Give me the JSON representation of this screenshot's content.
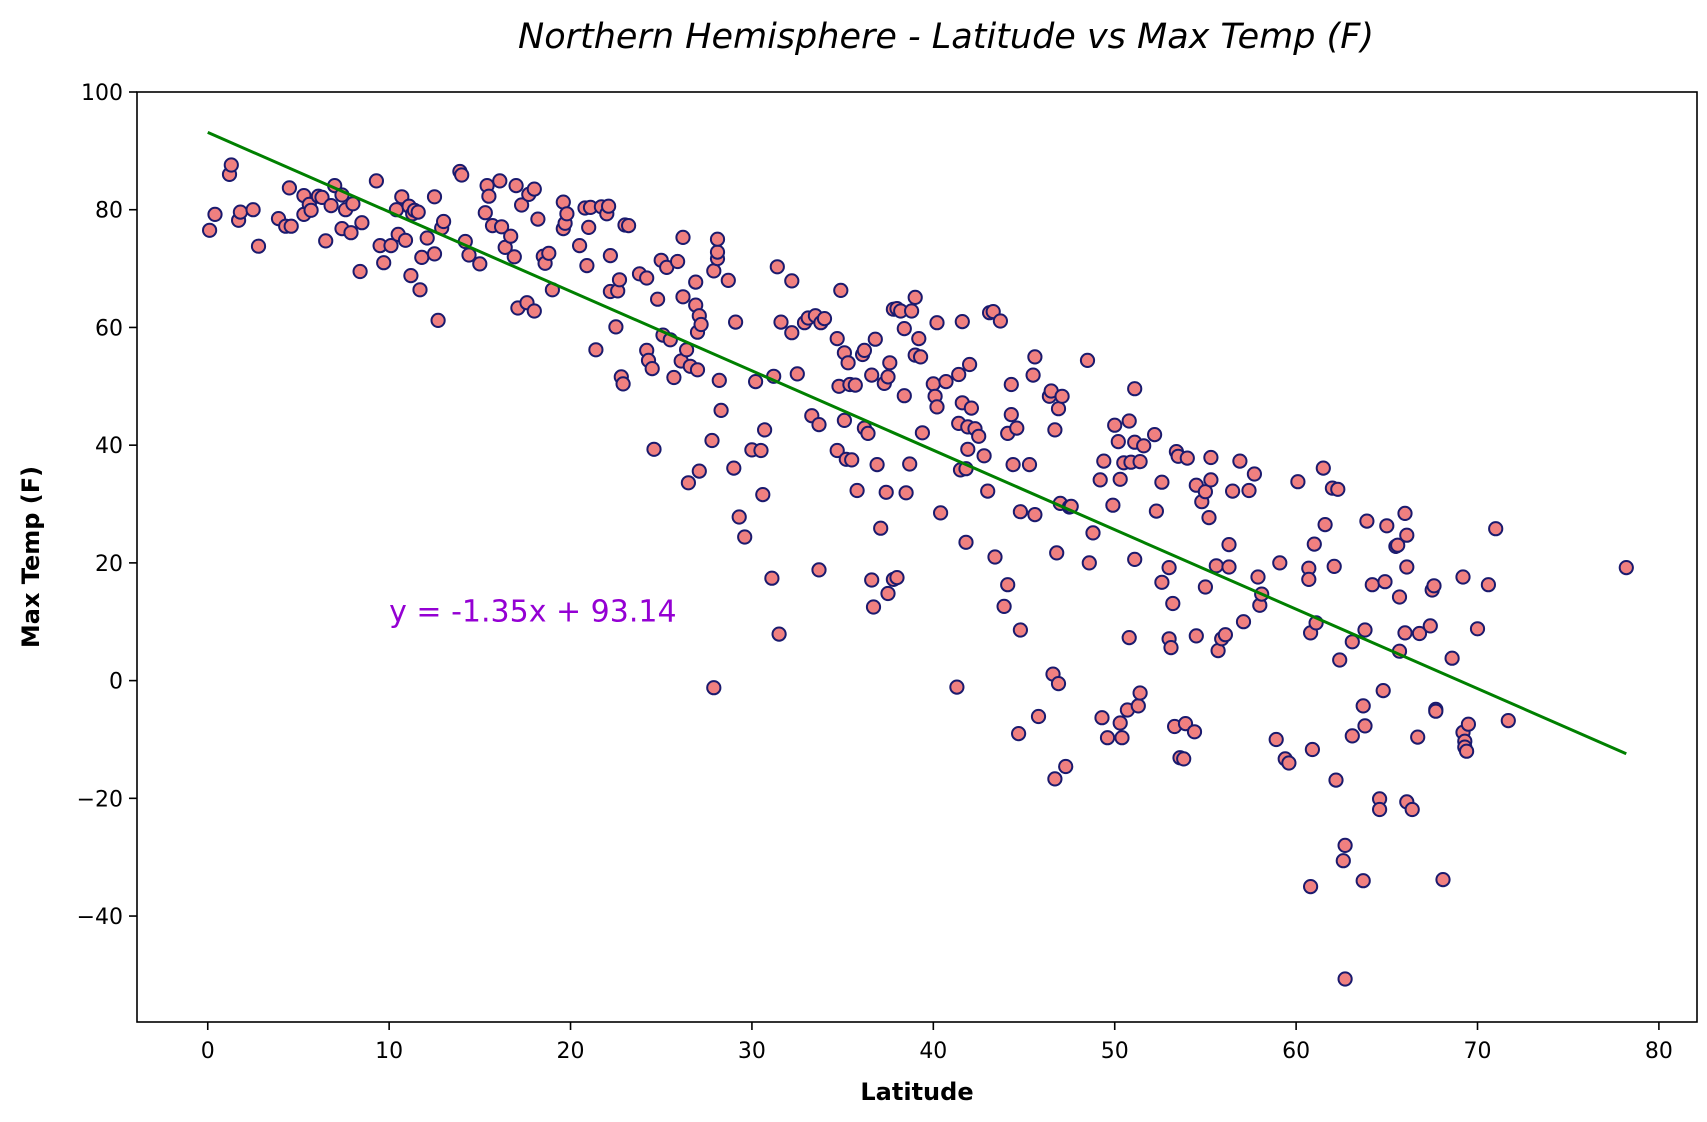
{
  "chart_data": {
    "type": "scatter",
    "title": "Northern Hemisphere - Latitude vs Max Temp (F)",
    "xlabel": "Latitude",
    "ylabel": "Max Temp (F)",
    "xlim": [
      -3.9,
      82.1
    ],
    "ylim": [
      -58,
      100
    ],
    "xticks": [
      0,
      10,
      20,
      30,
      40,
      50,
      60,
      70,
      80
    ],
    "yticks": [
      -40,
      -20,
      0,
      20,
      40,
      60,
      80,
      100
    ],
    "xtick_labels": [
      "0",
      "10",
      "20",
      "30",
      "40",
      "50",
      "60",
      "70",
      "80"
    ],
    "ytick_labels": [
      "−40",
      "−20",
      "0",
      "20",
      "40",
      "60",
      "80",
      "100"
    ],
    "grid": false,
    "marker_face_color": "#f08080",
    "marker_edge_color": "#1a1a6e",
    "regression": {
      "slope": -1.35,
      "intercept": 93.14,
      "x_range": [
        0,
        78.2
      ],
      "color": "#008000",
      "equation": "y = -1.35x + 93.14",
      "equation_color": "#9400d3",
      "equation_at": [
        10,
        10
      ]
    },
    "points": [
      [
        0.1,
        76.5
      ],
      [
        0.4,
        79.2
      ],
      [
        1.2,
        86
      ],
      [
        1.3,
        87.6
      ],
      [
        1.7,
        78.2
      ],
      [
        1.8,
        79.6
      ],
      [
        2.5,
        80
      ],
      [
        2.8,
        73.8
      ],
      [
        3.9,
        78.5
      ],
      [
        4.3,
        77.2
      ],
      [
        4.6,
        77.2
      ],
      [
        4.5,
        83.7
      ],
      [
        5.3,
        82.4
      ],
      [
        5.3,
        79.2
      ],
      [
        5.6,
        80.9
      ],
      [
        5.7,
        79.9
      ],
      [
        6.1,
        82.3
      ],
      [
        6.3,
        82.1
      ],
      [
        6.5,
        74.7
      ],
      [
        6.8,
        80.7
      ],
      [
        7,
        84.1
      ],
      [
        7.4,
        82.5
      ],
      [
        7.4,
        76.8
      ],
      [
        7.6,
        80
      ],
      [
        7.9,
        76.1
      ],
      [
        8,
        81
      ],
      [
        8.4,
        69.5
      ],
      [
        8.5,
        77.8
      ],
      [
        9.3,
        84.9
      ],
      [
        9.5,
        73.9
      ],
      [
        9.7,
        71
      ],
      [
        10.1,
        73.9
      ],
      [
        10.4,
        80
      ],
      [
        10.5,
        75.8
      ],
      [
        10.7,
        82.2
      ],
      [
        10.9,
        74.8
      ],
      [
        11.1,
        80.6
      ],
      [
        11.3,
        79.3
      ],
      [
        11.2,
        68.8
      ],
      [
        11.4,
        79.9
      ],
      [
        11.6,
        79.6
      ],
      [
        11.7,
        66.4
      ],
      [
        11.8,
        71.9
      ],
      [
        12.1,
        75.2
      ],
      [
        12.5,
        82.2
      ],
      [
        12.5,
        72.5
      ],
      [
        12.7,
        61.2
      ],
      [
        12.9,
        76.9
      ],
      [
        13,
        78
      ],
      [
        13.9,
        86.5
      ],
      [
        14,
        85.9
      ],
      [
        14.2,
        74.6
      ],
      [
        14.4,
        72.3
      ],
      [
        15,
        70.8
      ],
      [
        15.3,
        79.5
      ],
      [
        15.4,
        84.1
      ],
      [
        15.5,
        82.3
      ],
      [
        15.7,
        77.3
      ],
      [
        16.1,
        84.9
      ],
      [
        16.2,
        77.1
      ],
      [
        16.4,
        73.6
      ],
      [
        16.7,
        75.5
      ],
      [
        16.9,
        72
      ],
      [
        17,
        84.1
      ],
      [
        17.1,
        63.3
      ],
      [
        17.3,
        80.8
      ],
      [
        17.6,
        64.2
      ],
      [
        17.7,
        82.6
      ],
      [
        18,
        83.5
      ],
      [
        18,
        62.8
      ],
      [
        18.2,
        78.4
      ],
      [
        18.5,
        72.1
      ],
      [
        18.6,
        70.9
      ],
      [
        18.8,
        72.6
      ],
      [
        19,
        66.4
      ],
      [
        19.6,
        81.3
      ],
      [
        19.6,
        76.8
      ],
      [
        19.7,
        77.7
      ],
      [
        19.8,
        79.3
      ],
      [
        20.5,
        73.9
      ],
      [
        20.8,
        80.3
      ],
      [
        20.9,
        70.5
      ],
      [
        21,
        77
      ],
      [
        21.1,
        80.4
      ],
      [
        21.4,
        56.2
      ],
      [
        21.7,
        80.5
      ],
      [
        22,
        79.3
      ],
      [
        22.1,
        80.6
      ],
      [
        22.2,
        72.2
      ],
      [
        22.2,
        66.1
      ],
      [
        22.5,
        60.1
      ],
      [
        22.6,
        66.2
      ],
      [
        22.7,
        68.1
      ],
      [
        22.8,
        51.6
      ],
      [
        22.9,
        50.4
      ],
      [
        23,
        77.4
      ],
      [
        23.2,
        77.3
      ],
      [
        23.8,
        69.1
      ],
      [
        24.2,
        56.1
      ],
      [
        24.2,
        68.4
      ],
      [
        24.3,
        54.4
      ],
      [
        24.5,
        53
      ],
      [
        24.6,
        39.3
      ],
      [
        24.8,
        64.8
      ],
      [
        25,
        71.4
      ],
      [
        25.1,
        58.7
      ],
      [
        25.3,
        70.2
      ],
      [
        25.5,
        57.9
      ],
      [
        25.7,
        51.5
      ],
      [
        25.9,
        71.2
      ],
      [
        26.1,
        54.3
      ],
      [
        26.2,
        75.3
      ],
      [
        26.2,
        65.2
      ],
      [
        26.4,
        56.2
      ],
      [
        26.5,
        33.6
      ],
      [
        26.6,
        53.4
      ],
      [
        26.9,
        67.7
      ],
      [
        26.9,
        63.8
      ],
      [
        27,
        59.2
      ],
      [
        27,
        52.8
      ],
      [
        27.1,
        35.6
      ],
      [
        27.1,
        62
      ],
      [
        27.2,
        60.5
      ],
      [
        27.8,
        40.8
      ],
      [
        27.9,
        -1.2
      ],
      [
        27.9,
        69.6
      ],
      [
        28.1,
        71.7
      ],
      [
        28.1,
        72.8
      ],
      [
        28.1,
        75
      ],
      [
        28.2,
        51
      ],
      [
        28.3,
        45.9
      ],
      [
        28.7,
        68
      ],
      [
        29,
        36.1
      ],
      [
        29.1,
        60.9
      ],
      [
        29.3,
        27.8
      ],
      [
        29.6,
        24.4
      ],
      [
        30,
        39.2
      ],
      [
        30.2,
        50.8
      ],
      [
        30.5,
        39.1
      ],
      [
        30.6,
        31.6
      ],
      [
        30.7,
        42.6
      ],
      [
        31.1,
        17.4
      ],
      [
        31.2,
        51.7
      ],
      [
        31.4,
        70.3
      ],
      [
        31.5,
        7.9
      ],
      [
        31.6,
        60.9
      ],
      [
        32.2,
        59.1
      ],
      [
        32.2,
        67.9
      ],
      [
        32.5,
        52.1
      ],
      [
        32.9,
        60.8
      ],
      [
        33.1,
        61.6
      ],
      [
        33.3,
        45
      ],
      [
        33.5,
        62
      ],
      [
        33.7,
        18.8
      ],
      [
        33.7,
        43.5
      ],
      [
        33.8,
        60.8
      ],
      [
        34,
        61.5
      ],
      [
        34.7,
        39.1
      ],
      [
        34.7,
        58.1
      ],
      [
        34.8,
        50
      ],
      [
        34.9,
        66.3
      ],
      [
        35.1,
        44.2
      ],
      [
        35.1,
        55.7
      ],
      [
        35.2,
        37.6
      ],
      [
        35.3,
        54
      ],
      [
        35.4,
        50.3
      ],
      [
        35.5,
        37.5
      ],
      [
        35.7,
        50.2
      ],
      [
        35.8,
        32.3
      ],
      [
        36.1,
        55.4
      ],
      [
        36.2,
        42.9
      ],
      [
        36.2,
        56.1
      ],
      [
        36.4,
        42
      ],
      [
        36.6,
        51.9
      ],
      [
        36.6,
        17.1
      ],
      [
        36.7,
        12.5
      ],
      [
        36.8,
        58
      ],
      [
        36.9,
        36.7
      ],
      [
        37.1,
        25.9
      ],
      [
        37.3,
        50.5
      ],
      [
        37.4,
        32
      ],
      [
        37.5,
        14.8
      ],
      [
        37.5,
        51.6
      ],
      [
        37.6,
        54
      ],
      [
        37.8,
        17.2
      ],
      [
        37.8,
        63.1
      ],
      [
        38,
        17.5
      ],
      [
        38,
        63.2
      ],
      [
        38.2,
        62.8
      ],
      [
        38.4,
        59.8
      ],
      [
        38.4,
        48.4
      ],
      [
        38.5,
        31.9
      ],
      [
        38.7,
        36.8
      ],
      [
        38.8,
        62.8
      ],
      [
        39,
        55.3
      ],
      [
        39,
        65.1
      ],
      [
        39.2,
        58.1
      ],
      [
        39.3,
        55
      ],
      [
        39.4,
        42.1
      ],
      [
        40,
        50.4
      ],
      [
        40.1,
        48.3
      ],
      [
        40.2,
        46.5
      ],
      [
        40.2,
        60.8
      ],
      [
        40.4,
        28.5
      ],
      [
        40.7,
        50.8
      ],
      [
        41.3,
        -1.1
      ],
      [
        41.4,
        52
      ],
      [
        41.4,
        43.7
      ],
      [
        41.5,
        35.8
      ],
      [
        41.6,
        47.2
      ],
      [
        41.6,
        61
      ],
      [
        41.8,
        36
      ],
      [
        41.8,
        23.5
      ],
      [
        41.9,
        43.1
      ],
      [
        41.9,
        39.3
      ],
      [
        42,
        53.7
      ],
      [
        42.1,
        46.3
      ],
      [
        42.3,
        42.8
      ],
      [
        42.5,
        41.5
      ],
      [
        42.8,
        38.2
      ],
      [
        43,
        32.2
      ],
      [
        43.1,
        62.5
      ],
      [
        43.3,
        62.7
      ],
      [
        43.4,
        21
      ],
      [
        43.7,
        61.1
      ],
      [
        43.9,
        12.6
      ],
      [
        44.1,
        16.3
      ],
      [
        44.1,
        42
      ],
      [
        44.3,
        45.2
      ],
      [
        44.3,
        50.3
      ],
      [
        44.4,
        36.7
      ],
      [
        44.6,
        42.9
      ],
      [
        44.7,
        -9
      ],
      [
        44.8,
        28.7
      ],
      [
        44.8,
        8.6
      ],
      [
        45.3,
        36.7
      ],
      [
        45.5,
        51.9
      ],
      [
        45.6,
        55
      ],
      [
        45.6,
        28.2
      ],
      [
        45.8,
        -6.1
      ],
      [
        46.4,
        48.3
      ],
      [
        46.5,
        49.2
      ],
      [
        46.6,
        1.1
      ],
      [
        46.7,
        -16.7
      ],
      [
        46.7,
        42.6
      ],
      [
        46.8,
        21.7
      ],
      [
        46.9,
        -0.5
      ],
      [
        46.9,
        46.2
      ],
      [
        47,
        30.1
      ],
      [
        47.1,
        48.3
      ],
      [
        47.3,
        -14.6
      ],
      [
        47.5,
        29.5
      ],
      [
        47.6,
        29.6
      ],
      [
        48.5,
        54.4
      ],
      [
        48.6,
        20
      ],
      [
        48.8,
        25.1
      ],
      [
        49.2,
        34.1
      ],
      [
        49.3,
        -6.3
      ],
      [
        49.4,
        37.3
      ],
      [
        49.6,
        -9.7
      ],
      [
        49.9,
        29.8
      ],
      [
        50,
        43.4
      ],
      [
        50.2,
        40.6
      ],
      [
        50.3,
        -7.2
      ],
      [
        50.3,
        34.2
      ],
      [
        50.4,
        -9.7
      ],
      [
        50.5,
        37
      ],
      [
        50.7,
        -5
      ],
      [
        50.8,
        7.3
      ],
      [
        50.8,
        44.1
      ],
      [
        50.9,
        37.1
      ],
      [
        51.1,
        40.5
      ],
      [
        51.1,
        49.6
      ],
      [
        51.1,
        20.6
      ],
      [
        51.3,
        -4.3
      ],
      [
        51.4,
        -2.1
      ],
      [
        51.4,
        37.2
      ],
      [
        51.6,
        39.9
      ],
      [
        52.2,
        41.8
      ],
      [
        52.3,
        28.8
      ],
      [
        52.6,
        33.7
      ],
      [
        52.6,
        16.7
      ],
      [
        53,
        19.2
      ],
      [
        53,
        7.1
      ],
      [
        53.1,
        5.6
      ],
      [
        53.2,
        13.1
      ],
      [
        53.3,
        -7.8
      ],
      [
        53.4,
        38.9
      ],
      [
        53.5,
        38.1
      ],
      [
        53.6,
        -13.1
      ],
      [
        53.8,
        -13.3
      ],
      [
        53.9,
        -7.3
      ],
      [
        54,
        37.8
      ],
      [
        54.4,
        -8.7
      ],
      [
        54.5,
        7.6
      ],
      [
        54.5,
        33.2
      ],
      [
        54.8,
        30.4
      ],
      [
        55,
        15.9
      ],
      [
        55,
        32.1
      ],
      [
        55.2,
        27.7
      ],
      [
        55.3,
        34.1
      ],
      [
        55.3,
        37.9
      ],
      [
        55.6,
        19.5
      ],
      [
        55.7,
        5.1
      ],
      [
        55.9,
        7.1
      ],
      [
        56.1,
        7.8
      ],
      [
        56.3,
        19.3
      ],
      [
        56.3,
        23.1
      ],
      [
        56.5,
        32.2
      ],
      [
        56.9,
        37.3
      ],
      [
        57.1,
        10
      ],
      [
        57.4,
        32.3
      ],
      [
        57.7,
        35.1
      ],
      [
        57.9,
        17.6
      ],
      [
        58,
        12.8
      ],
      [
        58.1,
        14.7
      ],
      [
        58.9,
        -10
      ],
      [
        59.1,
        20
      ],
      [
        59.4,
        -13.3
      ],
      [
        59.6,
        -14
      ],
      [
        60.1,
        33.8
      ],
      [
        60.7,
        19.1
      ],
      [
        60.7,
        17.2
      ],
      [
        60.8,
        8.1
      ],
      [
        60.8,
        -35
      ],
      [
        60.9,
        -11.7
      ],
      [
        61,
        23.2
      ],
      [
        61.1,
        9.8
      ],
      [
        61.5,
        36.1
      ],
      [
        61.6,
        26.5
      ],
      [
        62,
        32.7
      ],
      [
        62.1,
        19.4
      ],
      [
        62.2,
        -16.9
      ],
      [
        62.3,
        32.5
      ],
      [
        62.4,
        3.5
      ],
      [
        62.6,
        -30.6
      ],
      [
        62.7,
        -50.7
      ],
      [
        62.7,
        -28
      ],
      [
        63.1,
        6.6
      ],
      [
        63.1,
        -9.4
      ],
      [
        63.7,
        -4.3
      ],
      [
        63.7,
        -34
      ],
      [
        63.8,
        8.6
      ],
      [
        63.8,
        -7.7
      ],
      [
        63.9,
        27.1
      ],
      [
        64.2,
        16.3
      ],
      [
        64.6,
        -20.1
      ],
      [
        64.6,
        -21.9
      ],
      [
        64.8,
        -1.7
      ],
      [
        64.9,
        16.8
      ],
      [
        65,
        26.3
      ],
      [
        65.5,
        22.8
      ],
      [
        65.6,
        23
      ],
      [
        65.7,
        14.2
      ],
      [
        65.7,
        5
      ],
      [
        66,
        8.1
      ],
      [
        66,
        28.4
      ],
      [
        66.1,
        24.7
      ],
      [
        66.1,
        19.3
      ],
      [
        66.1,
        -20.6
      ],
      [
        66.4,
        -21.9
      ],
      [
        66.7,
        -9.6
      ],
      [
        66.8,
        8
      ],
      [
        67.4,
        9.3
      ],
      [
        67.5,
        15.4
      ],
      [
        67.6,
        16.1
      ],
      [
        67.7,
        -4.9
      ],
      [
        67.7,
        -5.2
      ],
      [
        68.1,
        -33.8
      ],
      [
        68.6,
        3.8
      ],
      [
        69.2,
        17.6
      ],
      [
        69.2,
        -8.8
      ],
      [
        69.3,
        -10.3
      ],
      [
        69.3,
        -11.3
      ],
      [
        69.4,
        -12
      ],
      [
        69.5,
        -7.4
      ],
      [
        70,
        8.8
      ],
      [
        70.6,
        16.3
      ],
      [
        71,
        25.8
      ],
      [
        71.7,
        -6.8
      ],
      [
        78.2,
        19.2
      ]
    ]
  }
}
